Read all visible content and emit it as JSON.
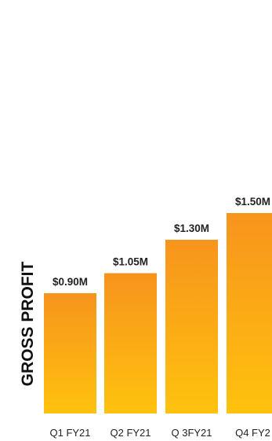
{
  "chart_data": {
    "type": "bar",
    "title": "",
    "xlabel": "",
    "ylabel": "GROSS PROFIT",
    "categories": [
      "Q1 FY21",
      "Q2 FY21",
      "Q 3FY21",
      "Q4 FY2"
    ],
    "values": [
      0.9,
      1.05,
      1.3,
      1.5
    ],
    "data_labels": [
      "$0.90M",
      "$1.05M",
      "$1.30M",
      "$1.50M"
    ],
    "ylim": [
      0,
      1.5
    ],
    "grid": false,
    "legend": "none",
    "colors": {
      "bar_top": "#F7941D",
      "bar_bottom": "#FFC20E",
      "text": "#222222"
    }
  }
}
